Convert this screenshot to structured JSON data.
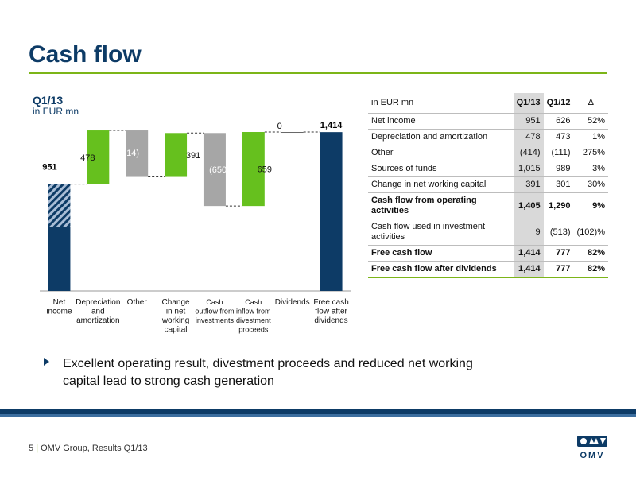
{
  "header": {
    "title": "Cash flow"
  },
  "chart_heading": "Q1/13",
  "chart_subheading": "in EUR mn",
  "chart_data": {
    "type": "bar",
    "subtype": "waterfall",
    "categories": [
      [
        "Net",
        "income"
      ],
      [
        "Depreciation",
        "and",
        "amortization"
      ],
      [
        "Other"
      ],
      [
        "Change",
        "in net",
        "working",
        "capital"
      ],
      [
        "Cash",
        "outflow from",
        "investments"
      ],
      [
        "Cash",
        "inflow from",
        "divestment",
        "proceeds"
      ],
      [
        "Dividends"
      ],
      [
        "Free cash",
        "flow after",
        "dividends"
      ]
    ],
    "values": [
      951,
      478,
      -414,
      391,
      -650,
      659,
      0,
      1414
    ],
    "value_labels": [
      "951",
      "478",
      "(414)",
      "391",
      "(650)",
      "659",
      "0",
      "1,414"
    ],
    "bar_kind": [
      "total",
      "delta",
      "delta",
      "delta",
      "delta",
      "delta",
      "delta",
      "total"
    ],
    "hatched_segment_top": 951,
    "hatched_segment_bottom": 566,
    "ylim": [
      0,
      1500
    ],
    "colors": {
      "total": "#0d3b66",
      "increase": "#66c01e",
      "decrease": "#a6a6a6",
      "hatch": "#a9bdd6",
      "connector": "#333333"
    }
  },
  "table": {
    "headers": [
      "in EUR mn",
      "Q1/13",
      "Q1/12",
      "Δ"
    ],
    "rows": [
      {
        "label": "Net income",
        "q113": "951",
        "q112": "626",
        "delta": "52%",
        "bold": false
      },
      {
        "label": "Depreciation and amortization",
        "q113": "478",
        "q112": "473",
        "delta": "1%",
        "bold": false
      },
      {
        "label": "Other",
        "q113": "(414)",
        "q112": "(111)",
        "delta": "275%",
        "bold": false
      },
      {
        "label": "Sources of funds",
        "q113": "1,015",
        "q112": "989",
        "delta": "3%",
        "bold": false
      },
      {
        "label": "Change in net working capital",
        "q113": "391",
        "q112": "301",
        "delta": "30%",
        "bold": false
      },
      {
        "label": "Cash flow from operating activities",
        "q113": "1,405",
        "q112": "1,290",
        "delta": "9%",
        "bold": true
      },
      {
        "label": "Cash flow used in investment activities",
        "q113": "9",
        "q112": "(513)",
        "delta": "(102)%",
        "bold": false
      },
      {
        "label": "Free cash flow",
        "q113": "1,414",
        "q112": "777",
        "delta": "82%",
        "bold": true
      },
      {
        "label": "Free cash flow after dividends",
        "q113": "1,414",
        "q112": "777",
        "delta": "82%",
        "bold": true
      }
    ]
  },
  "bullet": "Excellent operating result, divestment proceeds and reduced net working capital lead to strong cash generation",
  "footer": {
    "page": "5",
    "separator": "|",
    "text": "OMV Group, Results Q1/13"
  },
  "logo": {
    "name": "omv-logo",
    "text": "OMV"
  }
}
